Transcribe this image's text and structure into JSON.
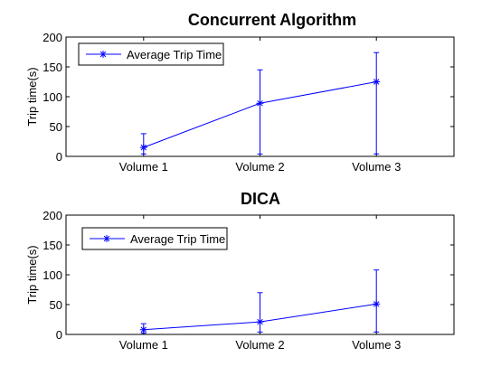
{
  "chart_data": [
    {
      "type": "line",
      "title": "Concurrent Algorithm",
      "xlabel": "",
      "ylabel": "Trip time(s)",
      "categories": [
        "Volume 1",
        "Volume 2",
        "Volume 3"
      ],
      "ylim": [
        0,
        200
      ],
      "yticks": [
        "0",
        "50",
        "100",
        "150",
        "200"
      ],
      "grid": false,
      "legend_position": "top-left",
      "series": [
        {
          "name": "Average Trip Time",
          "values": [
            15,
            89,
            125
          ],
          "error_low": [
            4,
            4,
            4
          ],
          "error_high": [
            38,
            145,
            174
          ],
          "color": "#0000ff",
          "marker": "asterisk"
        }
      ]
    },
    {
      "type": "line",
      "title": "DICA",
      "xlabel": "",
      "ylabel": "Trip time(s)",
      "categories": [
        "Volume 1",
        "Volume 2",
        "Volume 3"
      ],
      "ylim": [
        0,
        200
      ],
      "yticks": [
        "0",
        "50",
        "100",
        "150",
        "200"
      ],
      "grid": false,
      "legend_position": "top-left",
      "series": [
        {
          "name": "Average Trip Time",
          "values": [
            8,
            21,
            51
          ],
          "error_low": [
            2,
            4,
            4
          ],
          "error_high": [
            18,
            70,
            108
          ],
          "color": "#0000ff",
          "marker": "asterisk"
        }
      ]
    }
  ]
}
